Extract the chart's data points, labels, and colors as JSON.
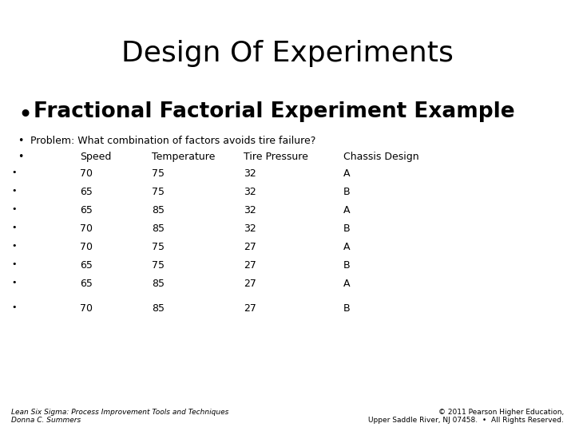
{
  "title": "Design Of Experiments",
  "background_color": "#ffffff",
  "text_color": "#000000",
  "bullet1": "Fractional Factorial Experiment Example",
  "bullet2": "Problem: What combination of factors avoids tire failure?",
  "table_headers": [
    "Speed",
    "Temperature",
    "Tire Pressure",
    "Chassis Design"
  ],
  "table_data": [
    [
      "70",
      "75",
      "32",
      "A"
    ],
    [
      "65",
      "75",
      "32",
      "B"
    ],
    [
      "65",
      "85",
      "32",
      "A"
    ],
    [
      "70",
      "85",
      "32",
      "B"
    ],
    [
      "70",
      "75",
      "27",
      "A"
    ],
    [
      "65",
      "75",
      "27",
      "B"
    ],
    [
      "65",
      "85",
      "27",
      "A"
    ],
    [
      "70",
      "85",
      "27",
      "B"
    ]
  ],
  "footer_left1": "Lean Six Sigma: Process Improvement Tools and Techniques",
  "footer_left2": "Donna C. Summers",
  "footer_right1": "© 2011 Pearson Higher Education,",
  "footer_right2": "Upper Saddle River, NJ 07458.  •  All Rights Reserved."
}
